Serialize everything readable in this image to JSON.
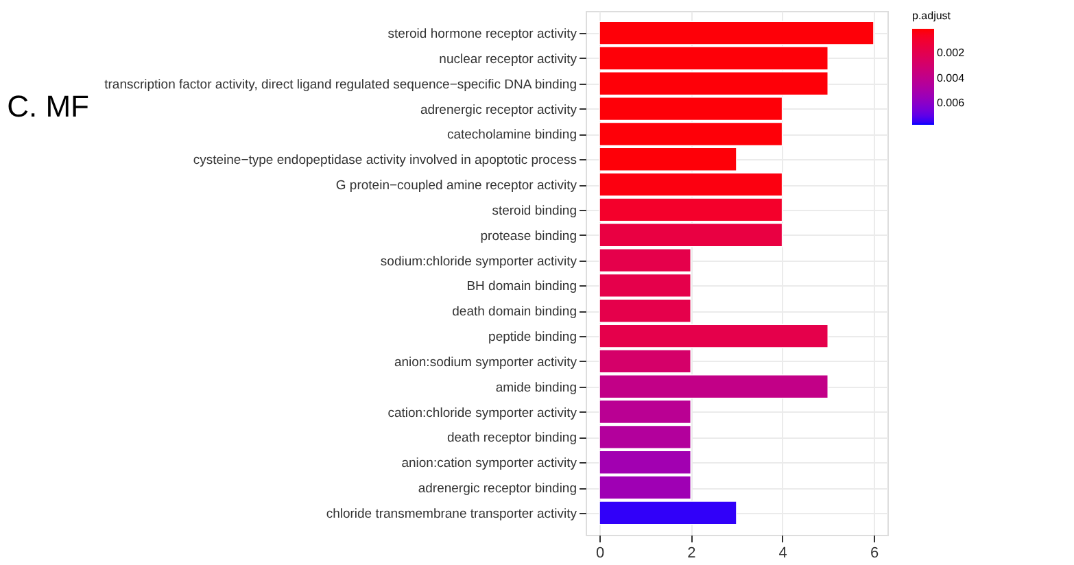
{
  "chart_data": {
    "type": "bar",
    "orientation": "horizontal",
    "title": "C.  MF",
    "categories": [
      "steroid hormone receptor activity",
      "nuclear receptor activity",
      "transcription factor activity, direct ligand regulated sequence−specific DNA binding",
      "adrenergic receptor activity",
      "catecholamine binding",
      "cysteine−type endopeptidase activity involved in apoptotic process",
      "G protein−coupled amine receptor activity",
      "steroid binding",
      "protease binding",
      "sodium:chloride symporter activity",
      "BH domain binding",
      "death domain binding",
      "peptide binding",
      "anion:sodium symporter activity",
      "amide binding",
      "cation:chloride symporter activity",
      "death receptor binding",
      "anion:cation symporter activity",
      "adrenergic receptor binding",
      "chloride transmembrane transporter activity"
    ],
    "values": [
      6,
      5,
      5,
      4,
      4,
      3,
      4,
      4,
      4,
      2,
      2,
      2,
      5,
      2,
      5,
      2,
      2,
      2,
      2,
      3
    ],
    "cvalues": [
      0.0001,
      0.0001,
      0.0001,
      0.0001,
      0.0001,
      0.0001,
      0.0002,
      0.0008,
      0.0015,
      0.0018,
      0.0018,
      0.0018,
      0.0018,
      0.0028,
      0.0038,
      0.0042,
      0.0045,
      0.0052,
      0.0053,
      0.0075
    ],
    "clabel": "p.adjust",
    "clim": [
      0,
      0.0077
    ],
    "cticks": [
      0.002,
      0.004,
      0.006
    ],
    "xlim": [
      -0.3,
      6.3
    ],
    "xticks": [
      0,
      2,
      4,
      6
    ],
    "grid": true
  }
}
